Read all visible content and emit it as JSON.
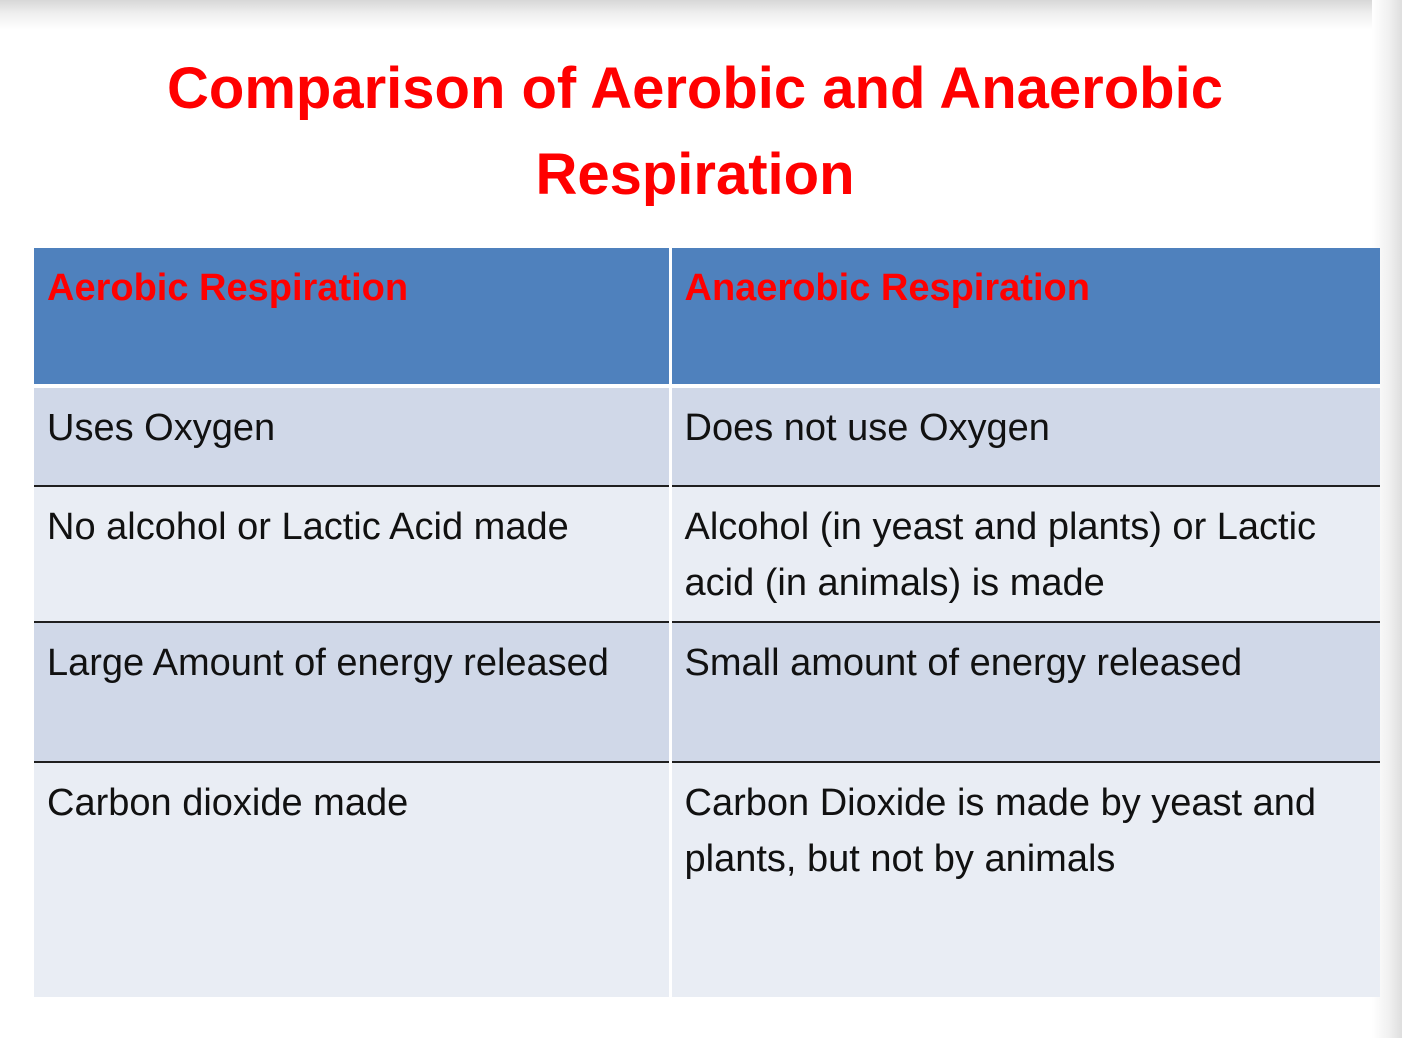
{
  "slide": {
    "title": "Comparison of Aerobic and Anaerobic Respiration"
  },
  "table": {
    "headers": [
      "Aerobic Respiration",
      "Anaerobic Respiration"
    ],
    "rows": [
      [
        "Uses  Oxygen",
        "Does not use  Oxygen"
      ],
      [
        "No alcohol or Lactic Acid made",
        "Alcohol (in yeast and plants) or Lactic acid (in animals) is made"
      ],
      [
        "Large Amount of energy released",
        "Small amount of energy released"
      ],
      [
        "Carbon dioxide made",
        "Carbon Dioxide is made by yeast and plants, but not by animals"
      ]
    ]
  },
  "colors": {
    "title": "#ff0000",
    "header_background": "#4f81bd",
    "header_text": "#ff0000",
    "row_dark": "#d0d8e8",
    "row_light": "#e9edf4"
  }
}
